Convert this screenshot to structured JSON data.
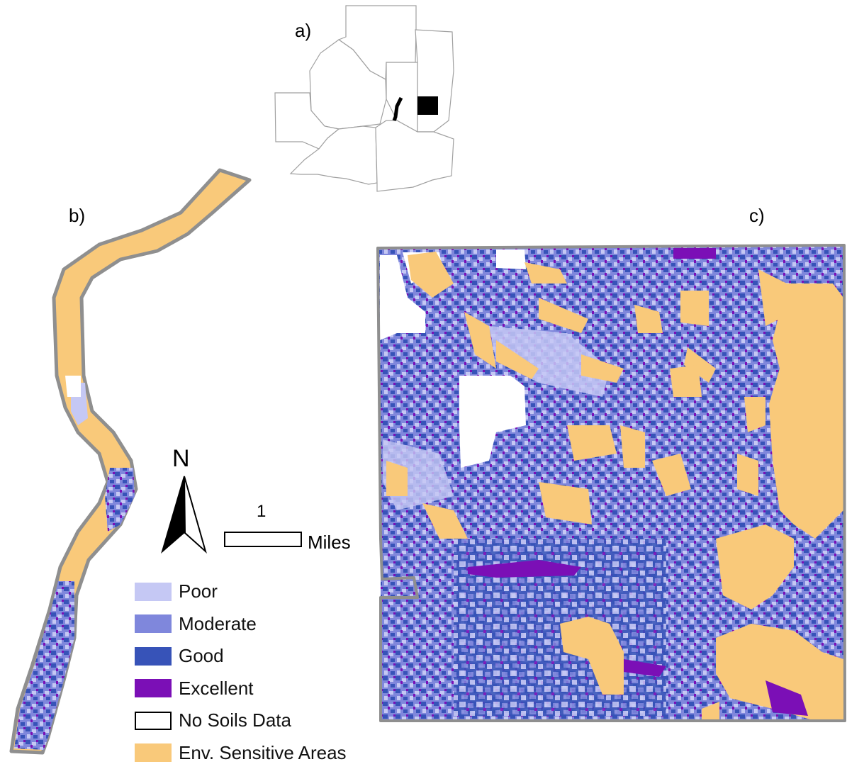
{
  "panels": {
    "a_label": "a)",
    "b_label": "b)",
    "c_label": "c)"
  },
  "north_arrow": {
    "label": "N"
  },
  "scale_bar": {
    "value": "1",
    "unit": "Miles"
  },
  "legend": {
    "items": [
      {
        "label": "Poor",
        "color": "#c5c8f4"
      },
      {
        "label": "Moderate",
        "color": "#7f87dc"
      },
      {
        "label": "Good",
        "color": "#3753b8"
      },
      {
        "label": "Excellent",
        "color": "#7b0fb6"
      },
      {
        "label": "No Soils Data",
        "color": "#ffffff"
      },
      {
        "label": "Env. Sensitive Areas",
        "color": "#f9c97a"
      }
    ]
  },
  "colors": {
    "corridor_outline": "#8f8f8f",
    "sensitive": "#f9c97a",
    "poor": "#c5c8f4",
    "moderate": "#7f87dc",
    "good": "#3753b8",
    "excellent": "#7b0fb6"
  }
}
